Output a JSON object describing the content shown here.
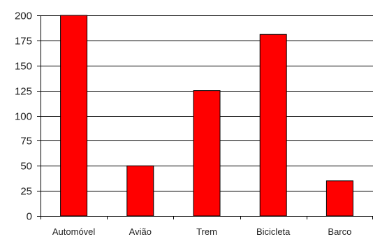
{
  "chart_data": {
    "type": "bar",
    "categories": [
      "Automóvel",
      "Avião",
      "Trem",
      "Bicicleta",
      "Barco"
    ],
    "values": [
      200,
      50,
      125,
      181,
      35
    ],
    "title": "",
    "xlabel": "",
    "ylabel": "",
    "ylim": [
      0,
      200
    ],
    "yticks": [
      0,
      25,
      50,
      75,
      100,
      125,
      150,
      175,
      200
    ],
    "grid": "horizontal",
    "legend": "none"
  },
  "colors": {
    "bar_fill": "#ff0000",
    "bar_stroke": "#000000",
    "grid": "#000000",
    "axis": "#000000",
    "text": "#222222"
  }
}
